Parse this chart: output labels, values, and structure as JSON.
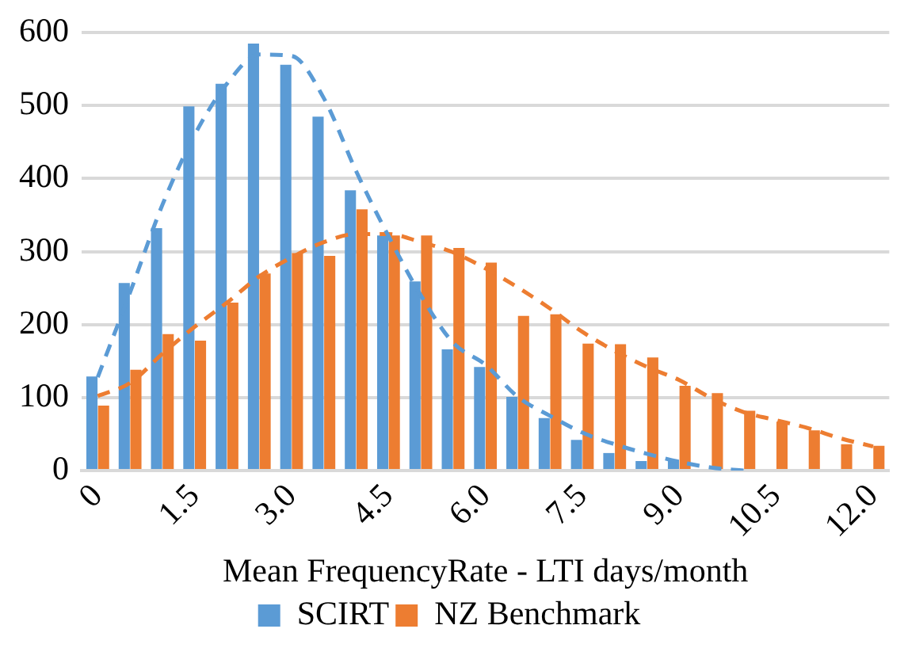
{
  "chart_data": {
    "type": "bar",
    "xlabel": "Mean FrequencyRate - LTI days/month",
    "categories": [
      "0",
      null,
      null,
      "1.5",
      null,
      null,
      "3.0",
      null,
      null,
      "4.5",
      null,
      null,
      "6.0",
      null,
      null,
      "7.5",
      null,
      null,
      "9.0",
      null,
      null,
      "10.5",
      null,
      null,
      "12.0"
    ],
    "series": [
      {
        "name": "SCIRT",
        "color": "#5b9bd5",
        "values": [
          129,
          257,
          332,
          499,
          530,
          585,
          556,
          485,
          384,
          322,
          259,
          166,
          142,
          101,
          72,
          42,
          24,
          13,
          15,
          null,
          0,
          0,
          0,
          0,
          0
        ]
      },
      {
        "name": "NZ Benchmark",
        "color": "#ed7d31",
        "values": [
          89,
          138,
          187,
          178,
          230,
          270,
          298,
          294,
          358,
          322,
          322,
          305,
          285,
          212,
          214,
          174,
          173,
          155,
          116,
          106,
          82,
          67,
          55,
          36,
          34
        ]
      },
      {
        "type": "line",
        "color": "#5b9bd5",
        "line_style": "dashed",
        "marker": "none",
        "values": [
          128,
          244,
          364,
          460,
          530,
          570,
          568,
          510,
          410,
          321,
          240,
          175,
          145,
          101,
          75,
          52,
          36,
          23,
          12,
          4,
          0,
          null,
          null,
          null,
          null
        ]
      },
      {
        "type": "line",
        "color": "#ed7d31",
        "line_style": "dashed",
        "marker": "none",
        "values": [
          102,
          120,
          160,
          197,
          230,
          266,
          292,
          313,
          324,
          324,
          313,
          299,
          277,
          251,
          222,
          190,
          164,
          142,
          124,
          99,
          80,
          69,
          58,
          44,
          33
        ]
      }
    ],
    "ylim": [
      0,
      600
    ],
    "yticks": [
      0,
      100,
      200,
      300,
      400,
      500,
      600
    ],
    "grid": "y",
    "legend": "bottom"
  }
}
